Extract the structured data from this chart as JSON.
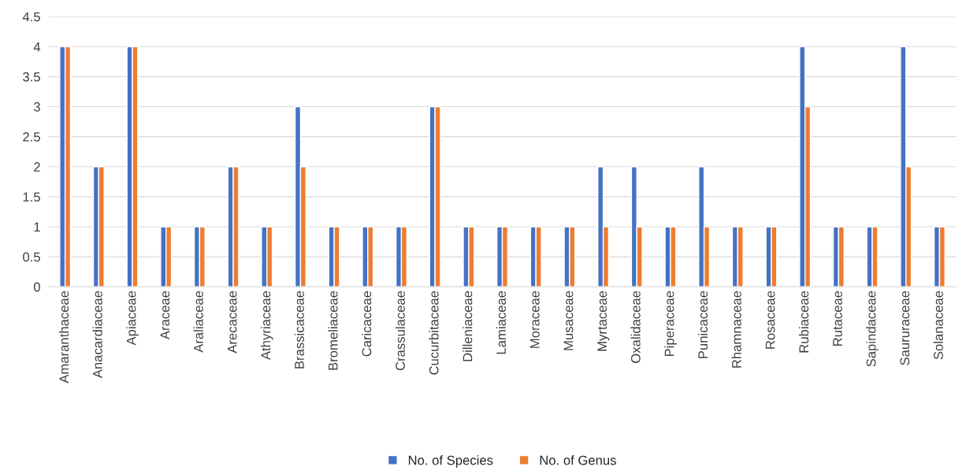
{
  "chart_data": {
    "type": "bar",
    "categories": [
      "Amaranthaceae",
      "Anacardiaceae",
      "Apiaceae",
      "Araceae",
      "Araliaceae",
      "Arecaceae",
      "Athyriaceae",
      "Brassicaceae",
      "Bromeliaceae",
      "Caricaceae",
      "Crassulaceae",
      "Cucurbitaceae",
      "Dilleniaceae",
      "Lamiaceae",
      "Moraceae",
      "Musaceae",
      "Myrtaceae",
      "Oxalidaceae",
      "Piperaceae",
      "Punicaceae",
      "Rhamnaceae",
      "Rosaceae",
      "Rubiaceae",
      "Rutaceae",
      "Sapindaceae",
      "Saururaceae",
      "Solanaceae"
    ],
    "series": [
      {
        "name": "No. of Species",
        "color": "#4472c4",
        "values": [
          4,
          2,
          4,
          1,
          1,
          2,
          1,
          3,
          1,
          1,
          1,
          3,
          1,
          1,
          1,
          1,
          2,
          2,
          1,
          2,
          1,
          1,
          4,
          1,
          1,
          4,
          1
        ]
      },
      {
        "name": "No. of Genus",
        "color": "#ed7d31",
        "values": [
          4,
          2,
          4,
          1,
          1,
          2,
          1,
          2,
          1,
          1,
          1,
          3,
          1,
          1,
          1,
          1,
          1,
          1,
          1,
          1,
          1,
          1,
          3,
          1,
          1,
          2,
          1
        ]
      }
    ],
    "ylim": [
      0,
      4.5
    ],
    "yticks": [
      0,
      0.5,
      1,
      1.5,
      2,
      2.5,
      3,
      3.5,
      4,
      4.5
    ],
    "grid": "y",
    "legend": "bottom"
  }
}
